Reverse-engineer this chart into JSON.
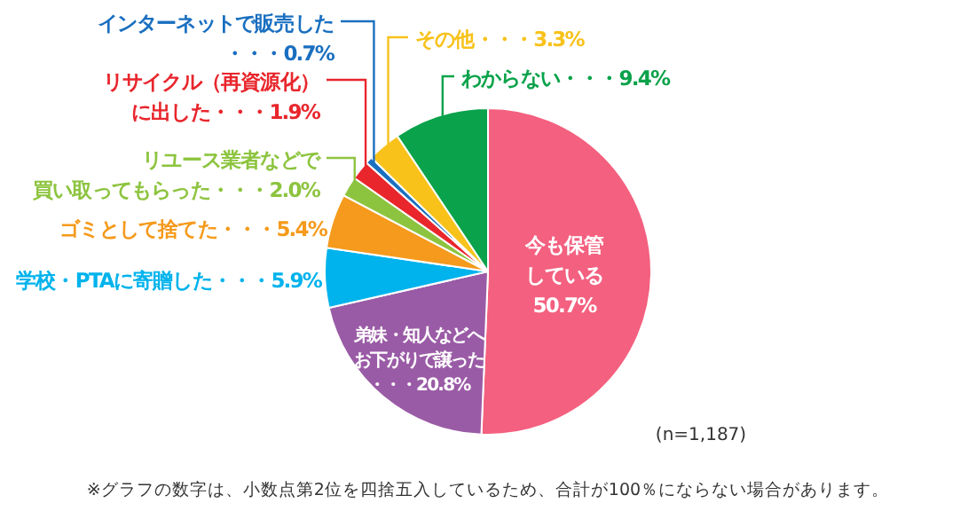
{
  "chart_data": {
    "type": "pie",
    "categories": [
      "今も保管している",
      "弟妹・知人などへお下がりで譲った",
      "学校・PTAに寄贈した",
      "ゴミとして捨てた",
      "リユース業者などで買い取ってもらった",
      "リサイクル（再資源化）に出した",
      "インターネットで販売した",
      "その他",
      "わからない"
    ],
    "values": [
      50.7,
      20.8,
      5.9,
      5.4,
      2.0,
      1.9,
      0.7,
      3.3,
      9.4
    ],
    "colors": [
      "#f4607f",
      "#9a5ba6",
      "#00b3ec",
      "#f59a1c",
      "#8dc43f",
      "#e8262c",
      "#1a6fc0",
      "#f8c21b",
      "#0aa24a"
    ],
    "value_labels": [
      "50.7%",
      "・・・20.8%",
      "・・・5.9%",
      "・・・5.4%",
      "・・・2.0%",
      "・・・1.9%",
      "・・・0.7%",
      "・・・3.3%",
      "・・・9.4%"
    ],
    "legend": false,
    "annotations": [
      "(n=1,187)",
      "※グラフの数字は、小数点第2位を四捨五入しているため、合計が100％にならない場合があります。"
    ]
  }
}
